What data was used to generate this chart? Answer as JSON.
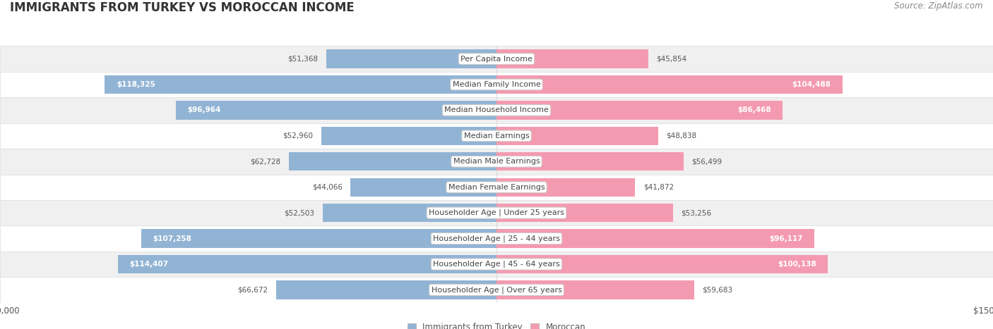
{
  "title": "IMMIGRANTS FROM TURKEY VS MOROCCAN INCOME",
  "source": "Source: ZipAtlas.com",
  "categories": [
    "Per Capita Income",
    "Median Family Income",
    "Median Household Income",
    "Median Earnings",
    "Median Male Earnings",
    "Median Female Earnings",
    "Householder Age | Under 25 years",
    "Householder Age | 25 - 44 years",
    "Householder Age | 45 - 64 years",
    "Householder Age | Over 65 years"
  ],
  "turkey_values": [
    51368,
    118325,
    96964,
    52960,
    62728,
    44066,
    52503,
    107258,
    114407,
    66672
  ],
  "moroccan_values": [
    45854,
    104488,
    86468,
    48838,
    56499,
    41872,
    53256,
    96117,
    100138,
    59683
  ],
  "turkey_color": "#92b4d4",
  "moroccan_color": "#f49ab0",
  "turkey_label": "Immigrants from Turkey",
  "moroccan_label": "Moroccan",
  "max_val": 150000,
  "bar_label_threshold": 80000,
  "title_fontsize": 12,
  "source_fontsize": 8.5,
  "tick_label_fontsize": 8.5,
  "category_fontsize": 8,
  "value_fontsize": 7.5
}
